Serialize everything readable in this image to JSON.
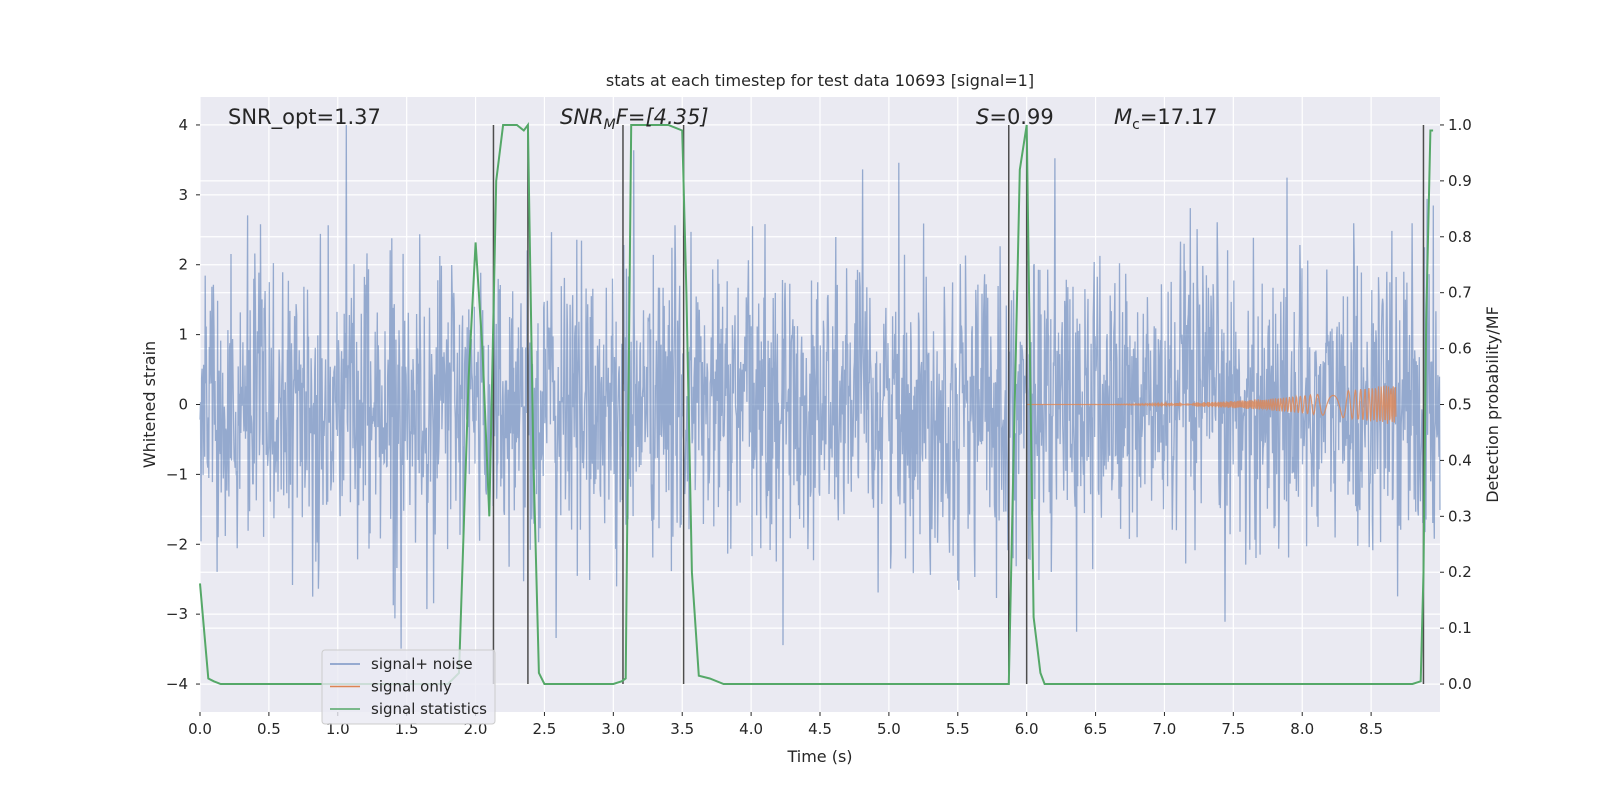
{
  "chart_data": {
    "type": "line",
    "title": "stats at each timestep for test data 10693 [signal=1]",
    "xlabel": "Time (s)",
    "ylabel_left": "Whitened strain",
    "ylabel_right": "Detection probability/MF",
    "xlim": [
      0.0,
      9.0
    ],
    "ylim_left": [
      -4.4,
      4.4
    ],
    "ylim_right": [
      -0.05,
      1.05
    ],
    "grid": true,
    "legend_position": "lower left",
    "x_ticks": [
      0.0,
      0.5,
      1.0,
      1.5,
      2.0,
      2.5,
      3.0,
      3.5,
      4.0,
      4.5,
      5.0,
      5.5,
      6.0,
      6.5,
      7.0,
      7.5,
      8.0,
      8.5
    ],
    "x_tick_labels": [
      "0.0",
      "0.5",
      "1.0",
      "1.5",
      "2.0",
      "2.5",
      "3.0",
      "3.5",
      "4.0",
      "4.5",
      "5.0",
      "5.5",
      "6.0",
      "6.5",
      "7.0",
      "7.5",
      "8.0",
      "8.5"
    ],
    "y_left_ticks": [
      -4,
      -3,
      -2,
      -1,
      0,
      1,
      2,
      3,
      4
    ],
    "y_left_tick_labels": [
      "−4",
      "−3",
      "−2",
      "−1",
      "0",
      "1",
      "2",
      "3",
      "4"
    ],
    "y_right_ticks": [
      0.0,
      0.1,
      0.2,
      0.3,
      0.4,
      0.5,
      0.6,
      0.7,
      0.8,
      0.9,
      1.0
    ],
    "y_right_tick_labels": [
      "0.0",
      "0.1",
      "0.2",
      "0.3",
      "0.4",
      "0.5",
      "0.6",
      "0.7",
      "0.8",
      "0.9",
      "1.0"
    ],
    "annotations": {
      "snr_opt": "SNR_opt=1.37",
      "snr_mf_main": "SNR",
      "snr_mf_sub": "M",
      "snr_mf_tail": "F=[4.35]",
      "s_symbol": "S",
      "s_value": "=0.99",
      "mc_symbol": "M",
      "mc_sub": "c",
      "mc_value": "=17.17"
    },
    "series": [
      {
        "name": "signal+ noise",
        "kind": "noise",
        "color": "#4c72b0",
        "amplitude_std": 0.9,
        "duration": 9.0
      },
      {
        "name": "signal only",
        "kind": "chirp",
        "color": "#dd8452",
        "x_start": 6.0,
        "x_end": 8.68,
        "peak_amplitude": 0.3
      },
      {
        "name": "signal statistics",
        "kind": "line",
        "color": "#55a868",
        "x": [
          0.0,
          0.06,
          0.1,
          0.15,
          1.8,
          1.88,
          1.95,
          2.0,
          2.05,
          2.1,
          2.15,
          2.2,
          2.25,
          2.3,
          2.35,
          2.38,
          2.42,
          2.46,
          2.5,
          2.55,
          3.0,
          3.06,
          3.09,
          3.13,
          3.2,
          3.3,
          3.4,
          3.5,
          3.53,
          3.57,
          3.62,
          3.7,
          3.8,
          4.0,
          5.87,
          5.9,
          5.95,
          6.0,
          6.05,
          6.1,
          6.13,
          6.2,
          8.8,
          8.86,
          8.88,
          8.9,
          8.93,
          8.95
        ],
        "y": [
          0.18,
          0.01,
          0.005,
          0.0,
          0.0,
          0.02,
          0.55,
          0.79,
          0.6,
          0.3,
          0.9,
          1.0,
          1.0,
          1.0,
          0.99,
          1.0,
          0.4,
          0.02,
          0.0,
          0.0,
          0.0,
          0.005,
          0.01,
          1.0,
          1.0,
          1.0,
          1.0,
          0.99,
          0.7,
          0.2,
          0.015,
          0.01,
          0.0,
          0.0,
          0.0,
          0.35,
          0.92,
          1.0,
          0.12,
          0.02,
          0.0,
          0.0,
          0.0,
          0.005,
          0.2,
          0.65,
          0.99,
          0.99
        ]
      }
    ],
    "vertical_lines": {
      "color": "#4d4d4d",
      "x": [
        2.13,
        2.38,
        3.07,
        3.51,
        5.87,
        6.0,
        8.88
      ]
    }
  }
}
